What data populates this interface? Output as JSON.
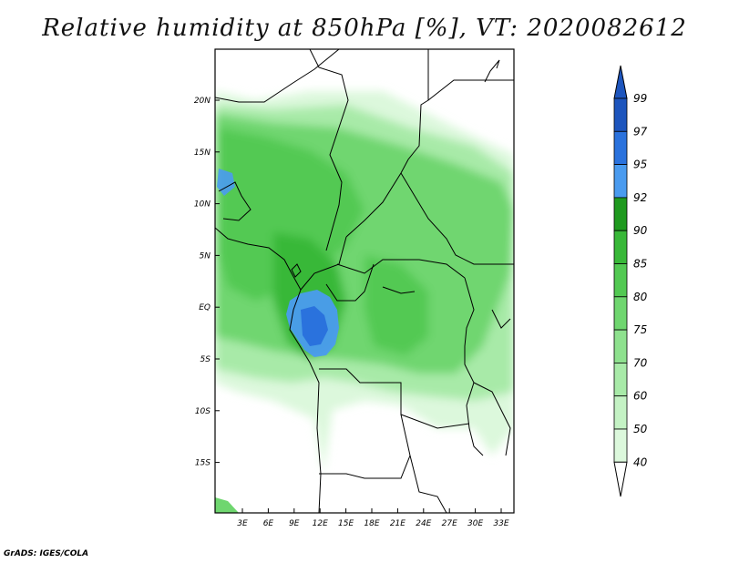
{
  "title": "Relative humidity at 850hPa [%], VT: 2020082612",
  "credit": "GrADS: IGES/COLA",
  "map": {
    "lon_labels": [
      "3E",
      "6E",
      "9E",
      "12E",
      "15E",
      "18E",
      "21E",
      "24E",
      "27E",
      "30E",
      "33E"
    ],
    "lat_labels": [
      "20N",
      "15N",
      "10N",
      "5N",
      "EQ",
      "5S",
      "10S",
      "15S"
    ],
    "fill_colors": {
      "40": "#f0fdf0",
      "50": "#dcf8dc",
      "60": "#c4f2c4",
      "70": "#a8eaa8",
      "75": "#8ee18e",
      "80": "#6fd66f",
      "85": "#52c952",
      "90": "#38b838",
      "92": "#1f9a1f",
      "95": "#4a9bef",
      "97": "#2a72dd",
      "99": "#1d55bd"
    }
  },
  "colorbar": {
    "levels": [
      "99",
      "97",
      "95",
      "92",
      "90",
      "85",
      "80",
      "75",
      "70",
      "60",
      "50",
      "40"
    ],
    "colors": [
      "#1d55bd",
      "#2a72dd",
      "#4a9bef",
      "#1f9a1f",
      "#38b838",
      "#52c952",
      "#6fd66f",
      "#8ee18e",
      "#a8eaa8",
      "#c4f2c4",
      "#dcf8dc",
      "#f0fdf0"
    ],
    "top_arrow_color": "#1d55bd",
    "bottom_arrow_color": "#ffffff"
  }
}
